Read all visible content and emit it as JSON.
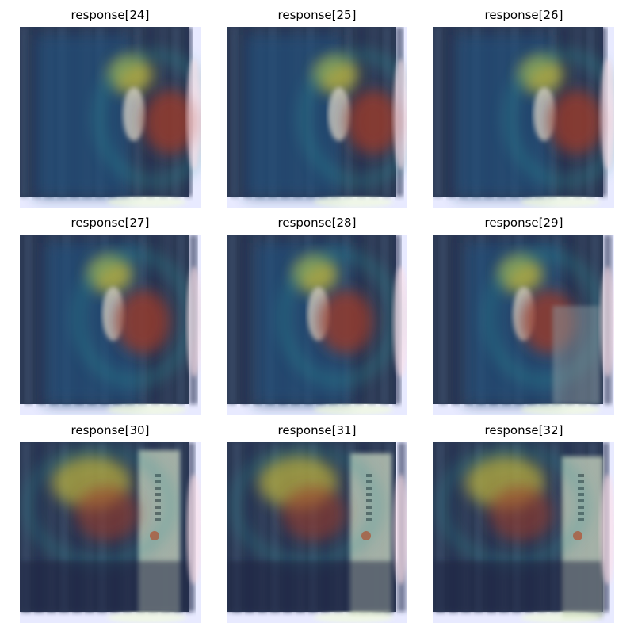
{
  "figure": {
    "panels": [
      {
        "title": "response[24]",
        "scene": "person-flowers",
        "variant": 0
      },
      {
        "title": "response[25]",
        "scene": "person-flowers",
        "variant": 1
      },
      {
        "title": "response[26]",
        "scene": "person-flowers",
        "variant": 2
      },
      {
        "title": "response[27]",
        "scene": "person-flowers",
        "variant": 3
      },
      {
        "title": "response[28]",
        "scene": "person-flowers",
        "variant": 4
      },
      {
        "title": "response[29]",
        "scene": "person-flowers",
        "variant": 5
      },
      {
        "title": "response[30]",
        "scene": "flowers-sign",
        "variant": 6
      },
      {
        "title": "response[31]",
        "scene": "flowers-sign",
        "variant": 7
      },
      {
        "title": "response[32]",
        "scene": "flowers-sign",
        "variant": 8
      }
    ],
    "colors": {
      "background": "#ffffff",
      "scene_dark": "#2c3a55",
      "heat_blue": "#1e3c8c",
      "heat_cyan": "#2a9a9a",
      "heat_yellow": "#b8b040",
      "heat_red": "#9a3a2a",
      "border_glow": "#e8eaff"
    }
  }
}
